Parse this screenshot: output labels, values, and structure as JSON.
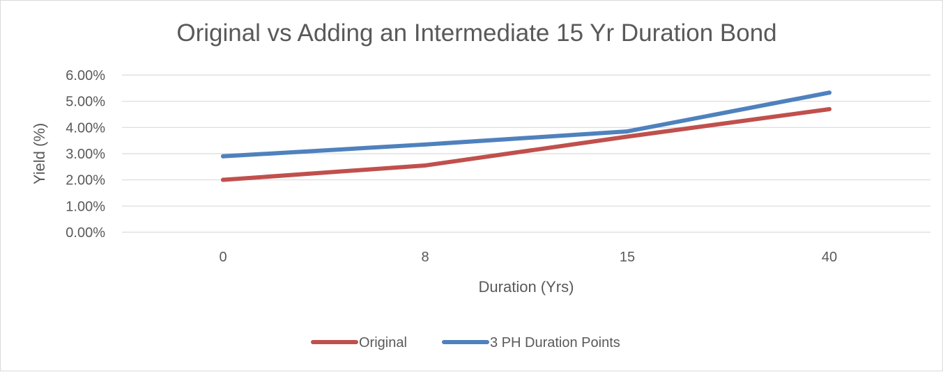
{
  "chart_data": {
    "type": "line",
    "title": "Original vs Adding an Intermediate 15 Yr Duration Bond",
    "xlabel": "Duration (Yrs)",
    "ylabel": "Yield (%)",
    "categories": [
      "0",
      "8",
      "15",
      "40"
    ],
    "yticks": [
      "0.00%",
      "1.00%",
      "2.00%",
      "3.00%",
      "4.00%",
      "5.00%",
      "6.00%"
    ],
    "ylim": [
      0,
      6
    ],
    "grid": true,
    "legend_position": "bottom",
    "series": [
      {
        "name": "Original",
        "color": "#c0504d",
        "values": [
          2.0,
          2.55,
          3.65,
          4.7
        ]
      },
      {
        "name": "3 PH Duration Points",
        "color": "#4f81bd",
        "values": [
          2.9,
          3.35,
          3.85,
          5.33
        ]
      }
    ]
  }
}
